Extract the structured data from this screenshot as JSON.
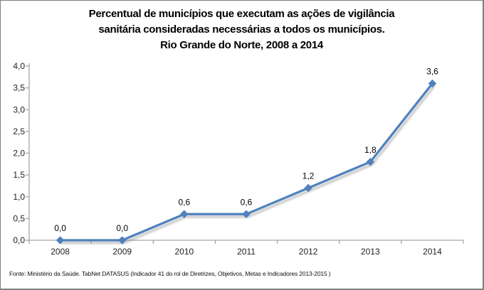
{
  "frame": {
    "border_color": "#808080",
    "background": "#ffffff"
  },
  "title": {
    "lines": [
      "Percentual de municípios que executam as ações de vigilância",
      "sanitária consideradas necessárias a todos os municípios.",
      "Rio Grande do Norte, 2008 a 2014"
    ]
  },
  "chart_data": {
    "type": "line",
    "title": "Percentual de municípios que executam as ações de vigilância sanitária consideradas necessárias a todos os municípios. Rio Grande do Norte, 2008 a 2014",
    "categories": [
      "2008",
      "2009",
      "2010",
      "2011",
      "2012",
      "2013",
      "2014"
    ],
    "values": [
      0.0,
      0.0,
      0.6,
      0.6,
      1.2,
      1.8,
      3.6
    ],
    "value_labels": [
      "0,0",
      "0,0",
      "0,6",
      "0,6",
      "1,2",
      "1,8",
      "3,6"
    ],
    "xlabel": "",
    "ylabel": "",
    "ylim": [
      0,
      4.0
    ],
    "yticks": [
      0,
      0.5,
      1.0,
      1.5,
      2.0,
      2.5,
      3.0,
      3.5,
      4.0
    ],
    "ytick_labels": [
      "0,0",
      "0,5",
      "1,0",
      "1,5",
      "2,0",
      "2,5",
      "3,0",
      "3,5",
      "4,0"
    ],
    "grid": false,
    "legend": "none",
    "marker": "diamond",
    "line_color": "#4F81BD",
    "marker_color": "#4F81BD",
    "shadow_color": "rgba(120,120,120,0.40)",
    "axis_color": "#A6A6A6",
    "tick_label_color": "#1f1f1f",
    "data_label_color": "#000000"
  },
  "footer": {
    "text": "Fonte: Ministério da Saúde. TabNet DATASUS (Indicador 41 do rol de Diretrizes, Objetivos, Metas e Indicadores 2013-2015 )"
  }
}
